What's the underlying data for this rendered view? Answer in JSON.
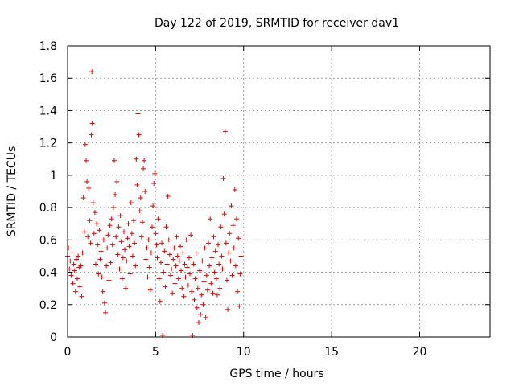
{
  "chart_data": {
    "type": "scatter",
    "title": "Day 122 of 2019, SRMTID for receiver dav1",
    "xlabel": "GPS time / hours",
    "ylabel": "SRMTID / TECUs",
    "xlim": [
      0,
      24
    ],
    "ylim": [
      0,
      1.8
    ],
    "xticks": [
      0,
      5,
      10,
      15,
      20
    ],
    "xtick_labels": [
      "0",
      "5",
      "10",
      "15",
      "20"
    ],
    "yticks": [
      0,
      0.2,
      0.4,
      0.6,
      0.8,
      1,
      1.2,
      1.4,
      1.6,
      1.8
    ],
    "ytick_labels": [
      "0",
      "0.2",
      "0.4",
      "0.6",
      "0.8",
      "1",
      "1.2",
      "1.4",
      "1.6",
      "1.8"
    ],
    "grid": true,
    "marker": "+",
    "color": "#e00000",
    "series": [
      {
        "name": "dav1",
        "points": [
          [
            0.0,
            0.5
          ],
          [
            0.05,
            0.55
          ],
          [
            0.1,
            0.42
          ],
          [
            0.15,
            0.47
          ],
          [
            0.2,
            0.38
          ],
          [
            0.25,
            0.52
          ],
          [
            0.3,
            0.33
          ],
          [
            0.35,
            0.45
          ],
          [
            0.4,
            0.41
          ],
          [
            0.45,
            0.28
          ],
          [
            0.5,
            0.48
          ],
          [
            0.55,
            0.36
          ],
          [
            0.6,
            0.5
          ],
          [
            0.65,
            0.43
          ],
          [
            0.7,
            0.31
          ],
          [
            0.75,
            0.44
          ],
          [
            0.8,
            0.25
          ],
          [
            0.85,
            0.52
          ],
          [
            0.9,
            0.86
          ],
          [
            0.95,
            0.65
          ],
          [
            1.0,
            1.19
          ],
          [
            1.05,
            1.09
          ],
          [
            1.1,
            0.96
          ],
          [
            1.15,
            0.62
          ],
          [
            1.2,
            0.92
          ],
          [
            1.25,
            0.72
          ],
          [
            1.3,
            0.58
          ],
          [
            1.35,
            1.25
          ],
          [
            1.38,
            1.64
          ],
          [
            1.4,
            1.32
          ],
          [
            1.45,
            0.83
          ],
          [
            1.5,
            0.64
          ],
          [
            1.55,
            0.77
          ],
          [
            1.6,
            0.45
          ],
          [
            1.65,
            0.7
          ],
          [
            1.7,
            0.57
          ],
          [
            1.75,
            0.39
          ],
          [
            1.8,
            0.66
          ],
          [
            1.85,
            0.48
          ],
          [
            1.9,
            0.53
          ],
          [
            1.95,
            0.37
          ],
          [
            2.0,
            0.28
          ],
          [
            2.05,
            0.6
          ],
          [
            2.1,
            0.21
          ],
          [
            2.15,
            0.15
          ],
          [
            2.2,
            0.44
          ],
          [
            2.25,
            0.55
          ],
          [
            2.3,
            0.63
          ],
          [
            2.35,
            0.35
          ],
          [
            2.4,
            0.69
          ],
          [
            2.45,
            0.46
          ],
          [
            2.5,
            0.73
          ],
          [
            2.55,
            0.57
          ],
          [
            2.6,
            0.8
          ],
          [
            2.65,
            1.09
          ],
          [
            2.7,
            0.88
          ],
          [
            2.75,
            0.62
          ],
          [
            2.8,
            0.96
          ],
          [
            2.85,
            0.51
          ],
          [
            2.9,
            0.68
          ],
          [
            2.95,
            0.42
          ],
          [
            3.0,
            0.75
          ],
          [
            3.05,
            0.59
          ],
          [
            3.1,
            0.36
          ],
          [
            3.15,
            0.49
          ],
          [
            3.2,
            0.65
          ],
          [
            3.25,
            0.54
          ],
          [
            3.3,
            0.3
          ],
          [
            3.35,
            0.47
          ],
          [
            3.4,
            0.61
          ],
          [
            3.45,
            0.7
          ],
          [
            3.5,
            0.56
          ],
          [
            3.55,
            0.39
          ],
          [
            3.6,
            0.83
          ],
          [
            3.65,
            0.64
          ],
          [
            3.7,
            0.5
          ],
          [
            3.75,
            0.72
          ],
          [
            3.8,
            0.58
          ],
          [
            3.85,
            0.44
          ],
          [
            3.9,
            1.1
          ],
          [
            3.95,
            0.94
          ],
          [
            4.0,
            1.38
          ],
          [
            4.05,
            1.25
          ],
          [
            4.1,
            0.78
          ],
          [
            4.15,
            0.86
          ],
          [
            4.2,
            0.62
          ],
          [
            4.25,
            0.71
          ],
          [
            4.3,
            1.04
          ],
          [
            4.35,
            1.09
          ],
          [
            4.4,
            0.9
          ],
          [
            4.45,
            0.48
          ],
          [
            4.5,
            0.55
          ],
          [
            4.55,
            0.37
          ],
          [
            4.6,
            0.6
          ],
          [
            4.65,
            0.43
          ],
          [
            4.7,
            0.29
          ],
          [
            4.75,
            0.52
          ],
          [
            4.8,
            0.68
          ],
          [
            4.85,
            0.81
          ],
          [
            4.9,
            0.95
          ],
          [
            4.95,
            1.01
          ],
          [
            5.0,
            0.64
          ],
          [
            5.05,
            0.57
          ],
          [
            5.1,
            0.49
          ],
          [
            5.15,
            0.73
          ],
          [
            5.2,
            0.36
          ],
          [
            5.25,
            0.22
          ],
          [
            5.3,
            0.46
          ],
          [
            5.35,
            0.58
          ],
          [
            5.4,
            0.01
          ],
          [
            5.45,
            0.4
          ],
          [
            5.5,
            0.53
          ],
          [
            5.55,
            0.31
          ],
          [
            5.6,
            0.68
          ],
          [
            5.65,
            0.45
          ],
          [
            5.7,
            0.87
          ],
          [
            5.75,
            0.6
          ],
          [
            5.8,
            0.51
          ],
          [
            5.85,
            0.38
          ],
          [
            5.9,
            0.42
          ],
          [
            5.95,
            0.27
          ],
          [
            6.0,
            0.48
          ],
          [
            6.05,
            0.55
          ],
          [
            6.1,
            0.33
          ],
          [
            6.15,
            0.44
          ],
          [
            6.2,
            0.62
          ],
          [
            6.25,
            0.5
          ],
          [
            6.3,
            0.36
          ],
          [
            6.35,
            0.47
          ],
          [
            6.4,
            0.56
          ],
          [
            6.45,
            0.41
          ],
          [
            6.5,
            0.3
          ],
          [
            6.55,
            0.52
          ],
          [
            6.6,
            0.25
          ],
          [
            6.65,
            0.45
          ],
          [
            6.7,
            0.37
          ],
          [
            6.75,
            0.6
          ],
          [
            6.8,
            0.43
          ],
          [
            6.85,
            0.32
          ],
          [
            6.9,
            0.49
          ],
          [
            6.95,
            0.39
          ],
          [
            7.0,
            0.63
          ],
          [
            7.05,
            0.28
          ],
          [
            7.1,
            0.01
          ],
          [
            7.15,
            0.45
          ],
          [
            7.2,
            0.23
          ],
          [
            7.25,
            0.36
          ],
          [
            7.3,
            0.52
          ],
          [
            7.35,
            0.18
          ],
          [
            7.4,
            0.3
          ],
          [
            7.45,
            0.09
          ],
          [
            7.5,
            0.41
          ],
          [
            7.55,
            0.14
          ],
          [
            7.6,
            0.26
          ],
          [
            7.65,
            0.47
          ],
          [
            7.7,
            0.2
          ],
          [
            7.75,
            0.34
          ],
          [
            7.8,
            0.55
          ],
          [
            7.85,
            0.12
          ],
          [
            7.9,
            0.38
          ],
          [
            7.95,
            0.29
          ],
          [
            8.0,
            0.58
          ],
          [
            8.05,
            0.44
          ],
          [
            8.1,
            0.73
          ],
          [
            8.15,
            0.33
          ],
          [
            8.2,
            0.49
          ],
          [
            8.25,
            0.27
          ],
          [
            8.3,
            0.62
          ],
          [
            8.35,
            0.4
          ],
          [
            8.4,
            0.53
          ],
          [
            8.45,
            0.36
          ],
          [
            8.5,
            0.26
          ],
          [
            8.55,
            0.57
          ],
          [
            8.6,
            0.45
          ],
          [
            8.65,
            0.3
          ],
          [
            8.7,
            0.68
          ],
          [
            8.75,
            0.5
          ],
          [
            8.8,
            0.42
          ],
          [
            8.85,
            0.98
          ],
          [
            8.9,
            0.76
          ],
          [
            8.95,
            1.27
          ],
          [
            9.0,
            0.58
          ],
          [
            9.05,
            0.35
          ],
          [
            9.1,
            0.17
          ],
          [
            9.15,
            0.52
          ],
          [
            9.2,
            0.64
          ],
          [
            9.25,
            0.47
          ],
          [
            9.3,
            0.81
          ],
          [
            9.35,
            0.38
          ],
          [
            9.4,
            0.69
          ],
          [
            9.45,
            0.55
          ],
          [
            9.5,
            0.91
          ],
          [
            9.55,
            0.44
          ],
          [
            9.6,
            0.73
          ],
          [
            9.65,
            0.28
          ],
          [
            9.7,
            0.61
          ],
          [
            9.75,
            0.19
          ],
          [
            9.8,
            0.39
          ],
          [
            9.85,
            0.5
          ]
        ]
      }
    ]
  }
}
